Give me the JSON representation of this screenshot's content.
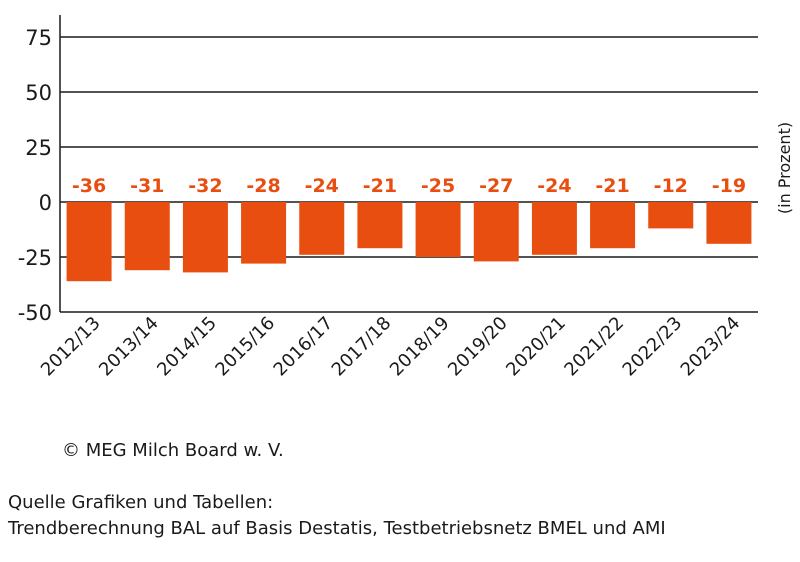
{
  "chart_data": {
    "type": "bar",
    "categories": [
      "2012/13",
      "2013/14",
      "2014/15",
      "2015/16",
      "2016/17",
      "2017/18",
      "2018/19",
      "2019/20",
      "2020/21",
      "2021/22",
      "2022/23",
      "2023/24"
    ],
    "values": [
      -36,
      -31,
      -32,
      -28,
      -24,
      -21,
      -25,
      -27,
      -24,
      -21,
      -12,
      -19
    ],
    "data_labels": [
      "-36",
      "-31",
      "-32",
      "-28",
      "-24",
      "-21",
      "-25",
      "-27",
      "-24",
      "-21",
      "-12",
      "-19"
    ],
    "ylabel": "(in Prozent)",
    "ylim": [
      -50,
      85
    ],
    "yticks": [
      75,
      50,
      25,
      0,
      -25,
      -50
    ],
    "ytick_labels": [
      "75",
      "50",
      "25",
      "0",
      "-25",
      "-50"
    ],
    "grid": true,
    "bar_color": "#e84e0f",
    "label_color": "#e84e0f"
  },
  "footer": {
    "copyright": "© MEG Milch Board w. V.",
    "source_line1": "Quelle Grafiken und Tabellen:",
    "source_line2": "Trendberechnung BAL auf Basis Destatis, Testbetriebsnetz BMEL und AMI"
  }
}
